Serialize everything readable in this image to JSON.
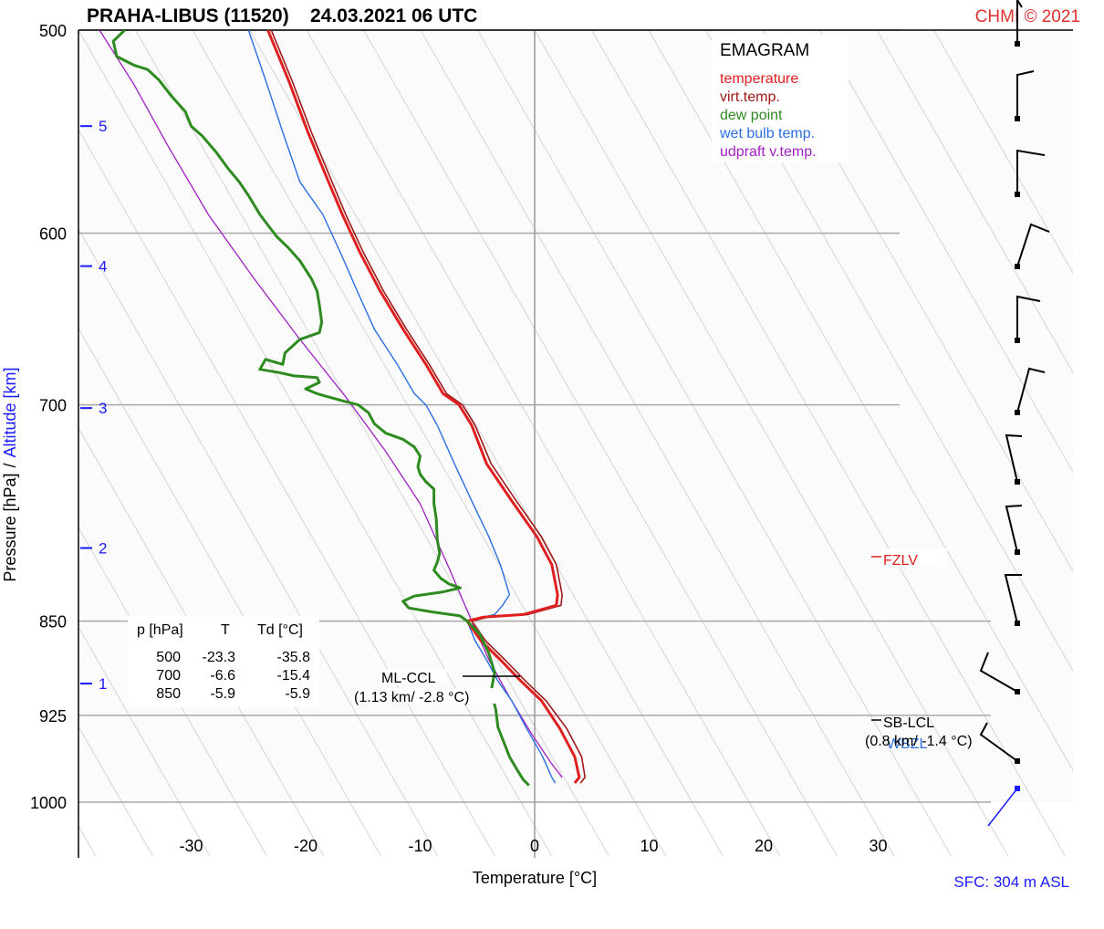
{
  "header": {
    "title": "PRAHA-LIBUS (11520)    24.03.2021 06 UTC",
    "copyright": "CHMI © 2021",
    "surface": "SFC: 304 m ASL"
  },
  "chart_data": {
    "type": "line",
    "title": "EMAGRAM",
    "xlabel": "Temperature [°C]",
    "ylabel_pressure": "Pressure [hPa]",
    "ylabel_separator": "/",
    "ylabel_altitude": "Altitude [km]",
    "xlim": [
      -40,
      40
    ],
    "ylim": [
      1000,
      500
    ],
    "y_scale": "log",
    "grid": true,
    "legend_position": "top-right",
    "x_ticks": [
      -30,
      -20,
      -10,
      0,
      10,
      20,
      30
    ],
    "x_tick_labels": [
      "-30",
      "-20",
      "-10",
      "0",
      "10",
      "20",
      "30"
    ],
    "y_ticks": [
      500,
      600,
      700,
      850,
      925,
      1000
    ],
    "y_tick_labels": [
      "500",
      "600",
      "700",
      "850",
      "925",
      "1000"
    ],
    "altitude_ticks": [
      {
        "label": "5",
        "pressure": 545
      },
      {
        "label": "4",
        "pressure": 618
      },
      {
        "label": "3",
        "pressure": 702
      },
      {
        "label": "2",
        "pressure": 796
      },
      {
        "label": "1",
        "pressure": 899
      }
    ],
    "series": [
      {
        "name": "temperature",
        "color": "#e02020",
        "points": [
          [
            -23.3,
            500
          ],
          [
            -21.5,
            523
          ],
          [
            -19.8,
            548
          ],
          [
            -18,
            573
          ],
          [
            -16.8,
            590
          ],
          [
            -15.3,
            610
          ],
          [
            -13.5,
            632
          ],
          [
            -11.5,
            654
          ],
          [
            -9.5,
            675
          ],
          [
            -8,
            693
          ],
          [
            -6.6,
            700
          ],
          [
            -5.5,
            713
          ],
          [
            -4.2,
            738
          ],
          [
            -2,
            763
          ],
          [
            0.2,
            788
          ],
          [
            1.5,
            808
          ],
          [
            2,
            830
          ],
          [
            1.9,
            838
          ],
          [
            -1,
            845
          ],
          [
            -4.5,
            847
          ],
          [
            -5.9,
            850
          ],
          [
            -4.7,
            865
          ],
          [
            -3,
            880
          ],
          [
            -1.2,
            897
          ],
          [
            0.6,
            913
          ],
          [
            2.2,
            936
          ],
          [
            3.5,
            960
          ],
          [
            3.9,
            978
          ],
          [
            3.5,
            983
          ]
        ]
      },
      {
        "name": "virt.temp.",
        "color": "#a01818",
        "points": [
          [
            -23,
            500
          ],
          [
            -21.2,
            523
          ],
          [
            -19.5,
            548
          ],
          [
            -17.7,
            573
          ],
          [
            -16.5,
            590
          ],
          [
            -15,
            610
          ],
          [
            -13.2,
            632
          ],
          [
            -11.2,
            654
          ],
          [
            -9.2,
            675
          ],
          [
            -7.7,
            693
          ],
          [
            -6.3,
            700
          ],
          [
            -5.2,
            713
          ],
          [
            -3.8,
            738
          ],
          [
            -1.6,
            763
          ],
          [
            0.6,
            788
          ],
          [
            1.9,
            808
          ],
          [
            2.4,
            830
          ],
          [
            2.3,
            838
          ],
          [
            -0.6,
            845
          ],
          [
            -4.1,
            847
          ],
          [
            -5.5,
            850
          ],
          [
            -4.3,
            865
          ],
          [
            -2.6,
            880
          ],
          [
            -0.8,
            897
          ],
          [
            1,
            913
          ],
          [
            2.8,
            936
          ],
          [
            4.1,
            960
          ],
          [
            4.4,
            978
          ],
          [
            4,
            983
          ]
        ]
      },
      {
        "name": "dew point",
        "color": "#2e8b20",
        "points": [
          [
            -35.8,
            500
          ],
          [
            -36.8,
            505
          ],
          [
            -36.5,
            512
          ],
          [
            -35,
            516
          ],
          [
            -33.8,
            518
          ],
          [
            -32.8,
            523
          ],
          [
            -31.8,
            530
          ],
          [
            -30.5,
            538
          ],
          [
            -30,
            545
          ],
          [
            -29,
            550
          ],
          [
            -27.8,
            558
          ],
          [
            -26.8,
            566
          ],
          [
            -25.8,
            573
          ],
          [
            -25,
            580
          ],
          [
            -24,
            590
          ],
          [
            -23,
            598
          ],
          [
            -22.5,
            602
          ],
          [
            -21.5,
            608
          ],
          [
            -20.5,
            615
          ],
          [
            -19.5,
            625
          ],
          [
            -19,
            632
          ],
          [
            -18.8,
            640
          ],
          [
            -18.6,
            650
          ],
          [
            -18.8,
            656
          ],
          [
            -20.5,
            660
          ],
          [
            -21.8,
            668
          ],
          [
            -22,
            675
          ],
          [
            -23.5,
            672
          ],
          [
            -24,
            678
          ],
          [
            -22.3,
            680
          ],
          [
            -21,
            682
          ],
          [
            -19,
            683
          ],
          [
            -18.8,
            686
          ],
          [
            -20,
            690
          ],
          [
            -19,
            693
          ],
          [
            -17,
            697
          ],
          [
            -15.4,
            700
          ],
          [
            -14.5,
            705
          ],
          [
            -14,
            712
          ],
          [
            -13,
            718
          ],
          [
            -11.5,
            722
          ],
          [
            -10.5,
            727
          ],
          [
            -10,
            733
          ],
          [
            -10.2,
            740
          ],
          [
            -10,
            745
          ],
          [
            -9.5,
            750
          ],
          [
            -8.8,
            755
          ],
          [
            -8.8,
            765
          ],
          [
            -8.6,
            775
          ],
          [
            -8.5,
            790
          ],
          [
            -8.3,
            800
          ],
          [
            -8.5,
            806
          ],
          [
            -8.8,
            812
          ],
          [
            -8.2,
            818
          ],
          [
            -7.5,
            822
          ],
          [
            -6.5,
            825
          ],
          [
            -8,
            828
          ],
          [
            -10.5,
            831
          ],
          [
            -11.5,
            835
          ],
          [
            -11,
            840
          ],
          [
            -9,
            843
          ],
          [
            -6.5,
            846
          ],
          [
            -5.9,
            850
          ],
          [
            -4.8,
            860
          ],
          [
            -4,
            875
          ],
          [
            -3.5,
            890
          ],
          [
            -3.8,
            905
          ],
          [
            -3.4,
            920
          ],
          [
            -3.2,
            935
          ],
          [
            -2.8,
            945
          ],
          [
            -2.2,
            960
          ],
          [
            -1.5,
            972
          ],
          [
            -1,
            980
          ],
          [
            -0.5,
            985
          ]
        ]
      },
      {
        "name": "wet bulb temp.",
        "color": "#2a6ee0",
        "points": [
          [
            -25,
            500
          ],
          [
            -23.5,
            523
          ],
          [
            -22,
            548
          ],
          [
            -20.5,
            573
          ],
          [
            -18.5,
            590
          ],
          [
            -17,
            610
          ],
          [
            -15.5,
            632
          ],
          [
            -14,
            654
          ],
          [
            -12,
            675
          ],
          [
            -10.5,
            693
          ],
          [
            -9.5,
            700
          ],
          [
            -8.5,
            713
          ],
          [
            -7,
            738
          ],
          [
            -5.5,
            763
          ],
          [
            -4,
            788
          ],
          [
            -3,
            808
          ],
          [
            -2.2,
            830
          ],
          [
            -2.8,
            838
          ],
          [
            -3.5,
            845
          ],
          [
            -4.5,
            847
          ],
          [
            -5.9,
            850
          ],
          [
            -5.2,
            865
          ],
          [
            -4.2,
            880
          ],
          [
            -3.2,
            897
          ],
          [
            -2,
            913
          ],
          [
            -0.7,
            936
          ],
          [
            0.7,
            960
          ],
          [
            1.5,
            978
          ],
          [
            1.8,
            983
          ]
        ]
      },
      {
        "name": "udpraft v.temp.",
        "color": "#a020c0",
        "points": [
          [
            -38,
            500
          ],
          [
            -35,
            525
          ],
          [
            -32,
            555
          ],
          [
            -28.5,
            590
          ],
          [
            -24.5,
            625
          ],
          [
            -20.5,
            660
          ],
          [
            -16.5,
            695
          ],
          [
            -13,
            730
          ],
          [
            -10,
            765
          ],
          [
            -7.5,
            810
          ],
          [
            -5.5,
            850
          ],
          [
            -4,
            880
          ],
          [
            -2.2,
            910
          ],
          [
            -0.3,
            940
          ],
          [
            1.4,
            965
          ],
          [
            2.4,
            978
          ]
        ]
      }
    ],
    "table": {
      "headers": [
        "p [hPa]",
        "T",
        "Td [°C]"
      ],
      "rows": [
        [
          "500",
          "-23.3",
          "-35.8"
        ],
        [
          "700",
          "-6.6",
          "-15.4"
        ],
        [
          "850",
          "-5.9",
          "-5.9"
        ]
      ]
    },
    "annotations": {
      "ml_ccl_label": "ML-CCL",
      "ml_ccl_value": "(1.13 km/ -2.8 °C)",
      "fzlv": "FZLV",
      "sb_lcl_label": "SB-LCL",
      "sb_lcl_value": "(0.8 km/ -1.4 °C)",
      "wbzl": "WBZL"
    },
    "wind_levels": [
      500,
      530,
      575,
      620,
      665,
      715,
      768,
      818,
      880,
      940,
      985
    ]
  }
}
